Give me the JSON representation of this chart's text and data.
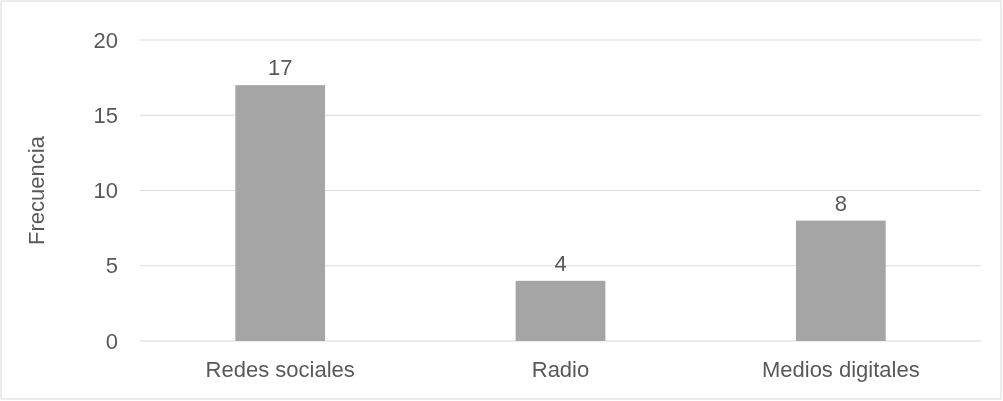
{
  "chart_data": {
    "type": "bar",
    "ylabel": "Frecuencia",
    "categories": [
      "Redes sociales",
      "Radio",
      "Medios digitales"
    ],
    "values": [
      17,
      4,
      8
    ],
    "color": "#a5a5a5",
    "ylim": [
      0,
      20
    ],
    "yticks": [
      0,
      5,
      10,
      15,
      20
    ],
    "grid": "y",
    "data_labels": true
  }
}
